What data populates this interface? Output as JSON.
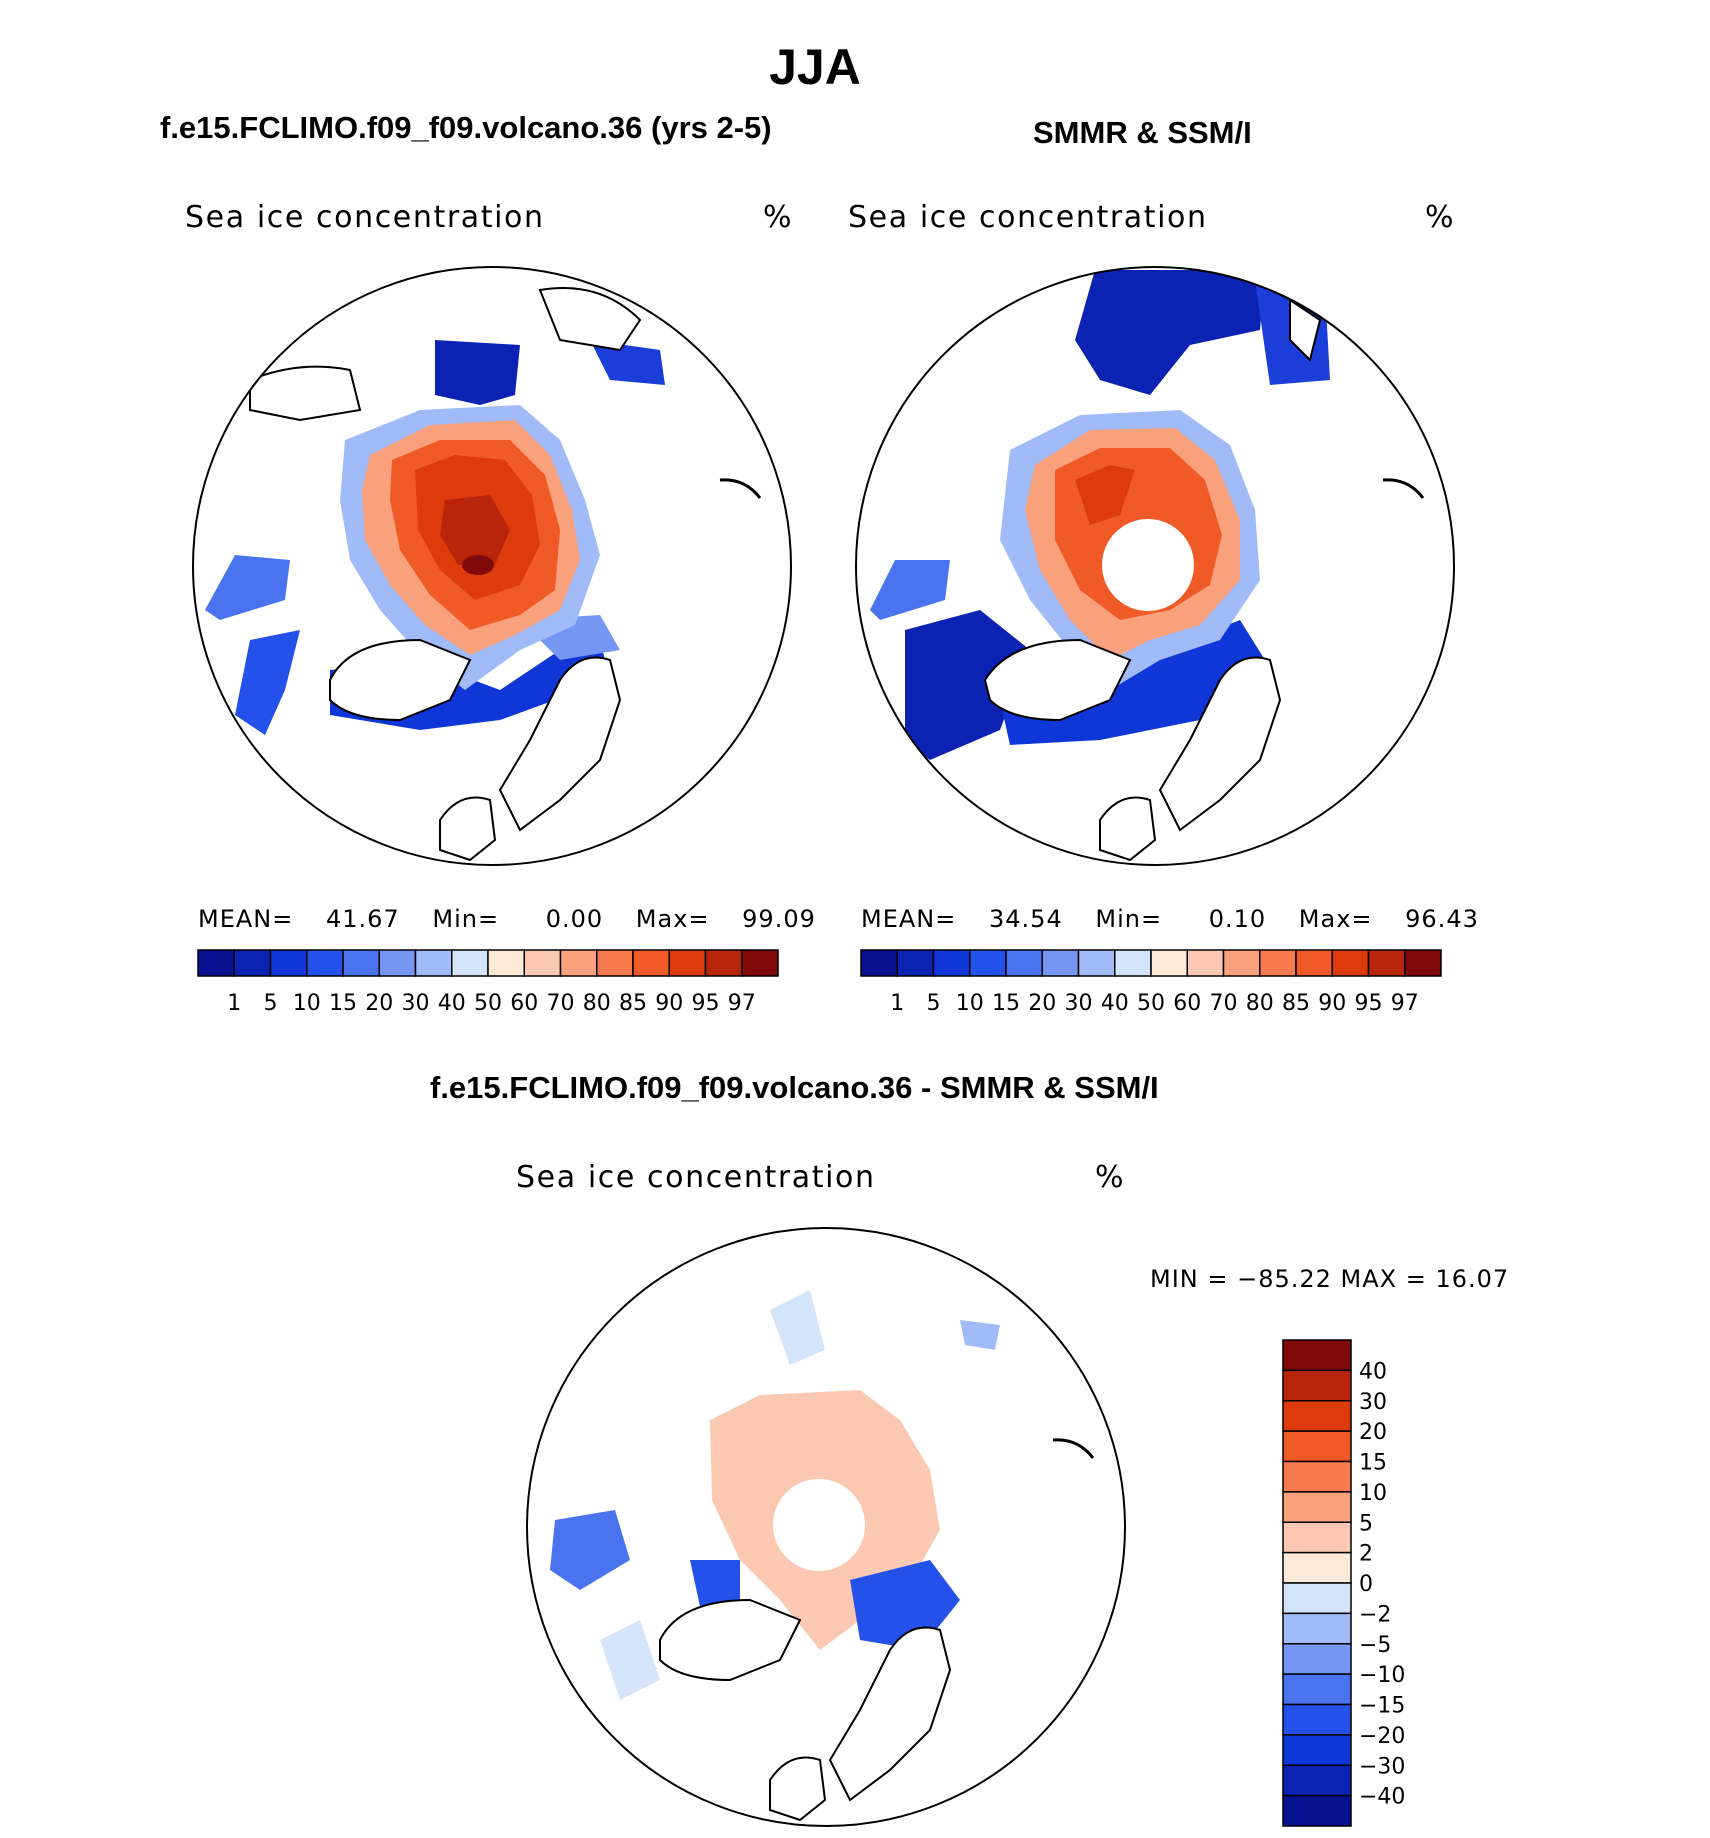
{
  "page": {
    "title": "JJA",
    "case_title": "f.e15.FCLIMO.f09_f09.volcano.36 (yrs 2-5)",
    "obs_title": "SMMR & SSM/I",
    "diff_title": "f.e15.FCLIMO.f09_f09.volcano.36 - SMMR & SSM/I"
  },
  "panels": [
    {
      "id": "model",
      "var_label": "Sea ice concentration",
      "units": "%",
      "mean_label": "MEAN=",
      "mean": "41.67",
      "min_label": "Min=",
      "min": "0.00",
      "max_label": "Max=",
      "max": "99.09"
    },
    {
      "id": "obs",
      "var_label": "Sea ice concentration",
      "units": "%",
      "mean_label": "MEAN=",
      "mean": "34.54",
      "min_label": "Min=",
      "min": "0.10",
      "max_label": "Max=",
      "max": "96.43"
    },
    {
      "id": "diff",
      "var_label": "Sea ice concentration",
      "units": "%",
      "minmax_text": "MIN = −85.22 MAX =   16.07"
    }
  ],
  "colorbars": {
    "concentration": {
      "labels": [
        "1",
        "5",
        "10",
        "15",
        "20",
        "30",
        "40",
        "50",
        "60",
        "70",
        "80",
        "85",
        "90",
        "95",
        "97"
      ],
      "colors": [
        "#08118f",
        "#0b22b3",
        "#0f36d6",
        "#2451ea",
        "#4a73f0",
        "#7596f3",
        "#a1baf8",
        "#d4e5fb",
        "#fde9d8",
        "#fbc9b2",
        "#f9a07d",
        "#f77b4f",
        "#f05a27",
        "#de3b0d",
        "#b8250b",
        "#800a0a"
      ]
    },
    "difference": {
      "labels": [
        "40",
        "30",
        "20",
        "15",
        "10",
        "5",
        "2",
        "0",
        "−2",
        "−5",
        "−10",
        "−15",
        "−20",
        "−30",
        "−40"
      ],
      "colors": [
        "#800a0a",
        "#b8250b",
        "#de3b0d",
        "#f05a27",
        "#f77b4f",
        "#f9a07d",
        "#fbc9b2",
        "#fde9d8",
        "#d4e5fb",
        "#a1baf8",
        "#7596f3",
        "#4a73f0",
        "#2451ea",
        "#0f36d6",
        "#0b22b3",
        "#08118f"
      ]
    }
  },
  "map_colors": {
    "land_outline": "#000000",
    "ice_core": "#b8250b",
    "ice_high": "#de3b0d",
    "ice_mid": "#f05a27",
    "ice_edge_red": "#f9a07d",
    "ice_low_blue": "#4a73f0",
    "ice_deep_blue": "#0b22b3",
    "diff_pos": "#fbc9b2",
    "diff_neg": "#7596f3",
    "diff_neg_strong": "#2451ea"
  }
}
